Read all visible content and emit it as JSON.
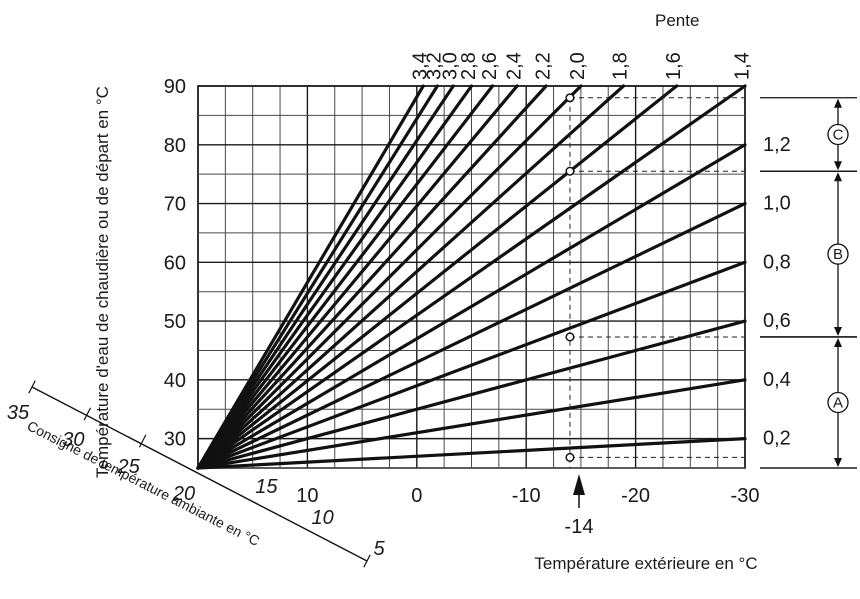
{
  "chart_data": {
    "type": "line",
    "title": "",
    "xlabel": "Température extérieure en °C",
    "ylabel": "Température d'eau de chaudière ou de départ en °C",
    "x_ticks": [
      "20",
      "10",
      "0",
      "-10",
      "-20",
      "-30"
    ],
    "y_ticks": [
      "30",
      "40",
      "50",
      "60",
      "70",
      "80",
      "90"
    ],
    "xlim": [
      20,
      -30
    ],
    "ylim": [
      25,
      90
    ],
    "grid": true,
    "origin": {
      "x": 20,
      "y": 20
    },
    "slope_label": "Pente",
    "marker_x_label": "-14",
    "marker_x": -14,
    "slope_series": [
      {
        "name": "3,4",
        "slope": 3.4
      },
      {
        "name": "3,2",
        "slope": 3.2
      },
      {
        "name": "3,0",
        "slope": 3.0
      },
      {
        "name": "2,8",
        "slope": 2.8
      },
      {
        "name": "2,6",
        "slope": 2.6
      },
      {
        "name": "2,4",
        "slope": 2.4
      },
      {
        "name": "2,2",
        "slope": 2.2
      },
      {
        "name": "2,0",
        "slope": 2.0
      },
      {
        "name": "1,8",
        "slope": 1.8
      },
      {
        "name": "1,6",
        "slope": 1.6
      },
      {
        "name": "1,4",
        "slope": 1.4
      },
      {
        "name": "1,2",
        "slope": 1.2
      },
      {
        "name": "1,0",
        "slope": 1.0
      },
      {
        "name": "0,8",
        "slope": 0.8
      },
      {
        "name": "0,6",
        "slope": 0.6
      },
      {
        "name": "0,4",
        "slope": 0.4
      },
      {
        "name": "0,2",
        "slope": 0.2
      }
    ],
    "marked_points": [
      {
        "slope": 2.0,
        "y": 88
      },
      {
        "slope": 1.6,
        "y": 75.5
      },
      {
        "slope": 0.8,
        "y": 47.3
      },
      {
        "slope": 0.2,
        "y": 26.8
      }
    ],
    "zones": [
      {
        "label": "A",
        "y_range": [
          25,
          47.3
        ]
      },
      {
        "label": "B",
        "y_range": [
          47.3,
          75.5
        ]
      },
      {
        "label": "C",
        "y_range": [
          75.5,
          88
        ]
      }
    ],
    "room_axis": {
      "label": "Consigne de température ambiante en °C",
      "ticks_upper": [
        "35",
        "30",
        "25",
        "20"
      ],
      "ticks_lower": [
        "15",
        "10",
        "5"
      ]
    }
  }
}
